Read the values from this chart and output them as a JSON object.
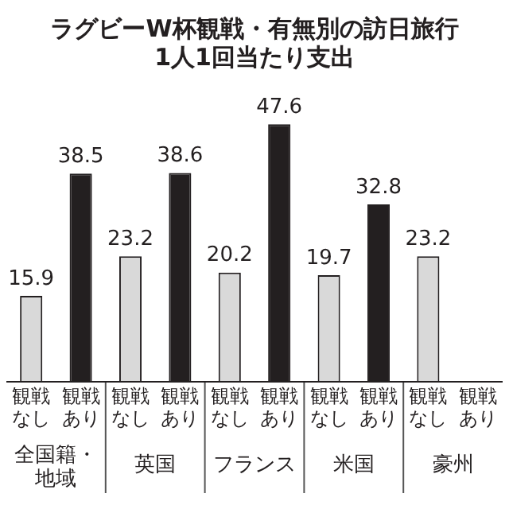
{
  "chart_data": {
    "type": "bar",
    "title": "ラグビーW杯観戦・有無別の訪日旅行",
    "subtitle": "1人1回当たり支出",
    "categories": [
      "全国籍・地域",
      "英国",
      "フランス",
      "米国",
      "豪州"
    ],
    "series": [
      {
        "name": "観戦なし",
        "color": "#d9d9d9",
        "values": [
          15.9,
          23.2,
          20.2,
          19.7,
          23.2
        ]
      },
      {
        "name": "観戦あり",
        "color": "#231f20",
        "values": [
          38.5,
          38.6,
          47.6,
          32.8,
          null
        ]
      }
    ],
    "data_labels": true,
    "legend": false
  }
}
